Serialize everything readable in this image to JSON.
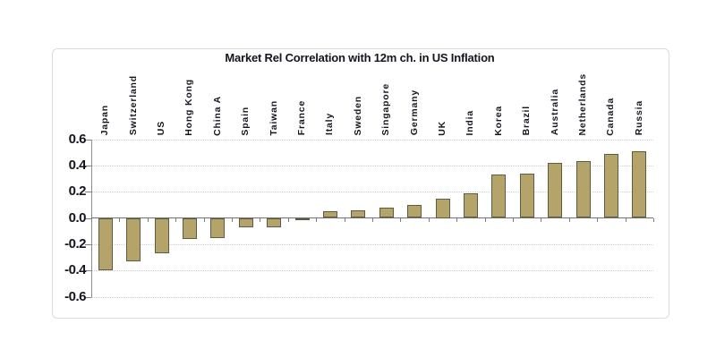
{
  "chart_data": {
    "type": "bar",
    "title": "Market Rel Correlation with 12m ch. in US Inflation",
    "categories": [
      "Japan",
      "Switzerland",
      "US",
      "Hong Kong",
      "China A",
      "Spain",
      "Taiwan",
      "France",
      "Italy",
      "Sweden",
      "Singapore",
      "Germany",
      "UK",
      "India",
      "Korea",
      "Brazil",
      "Australia",
      "Netherlands",
      "Canada",
      "Russia"
    ],
    "values": [
      -0.4,
      -0.33,
      -0.27,
      -0.16,
      -0.15,
      -0.07,
      -0.07,
      -0.02,
      0.05,
      0.06,
      0.08,
      0.1,
      0.15,
      0.19,
      0.33,
      0.34,
      0.42,
      0.43,
      0.49,
      0.51
    ],
    "xlabel": "",
    "ylabel": "",
    "ylim": [
      -0.6,
      0.6
    ],
    "y_ticks": [
      "0.6",
      "0.4",
      "0.2",
      "0.0",
      "-0.2",
      "-0.4",
      "-0.6"
    ],
    "y_tick_values": [
      0.6,
      0.4,
      0.2,
      0.0,
      -0.2,
      -0.4,
      -0.6
    ],
    "grid": "horizontal dotted gridlines, legend none",
    "category_labels_position": "rotated 90deg above plot",
    "colors": {
      "bar_fill": "#b4a46a",
      "bar_border": "#5e5a44",
      "axis": "#7f7f7f",
      "gridline": "#cfcfcf",
      "text": "#15151f",
      "panel_border": "#dcdcdc",
      "background": "#ffffff"
    }
  }
}
